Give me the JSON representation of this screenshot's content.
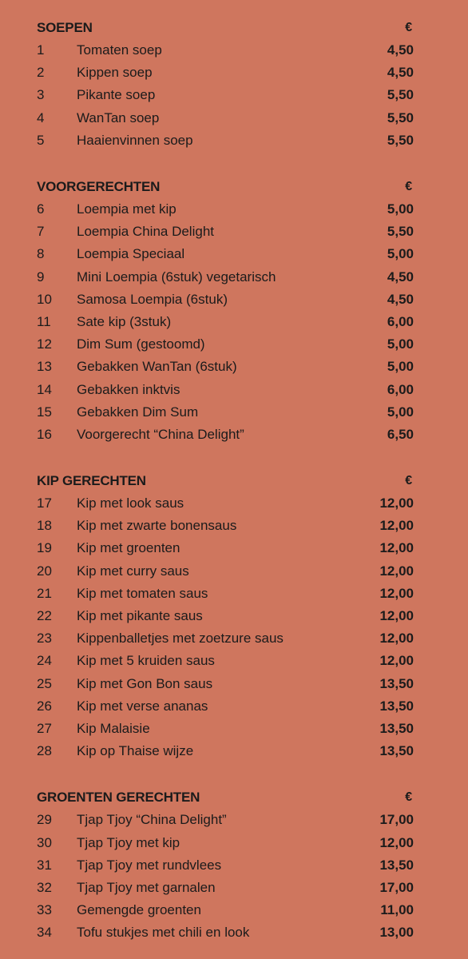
{
  "sections": [
    {
      "title": "SOEPEN",
      "currency": "€",
      "items": [
        {
          "num": "1",
          "name": "Tomaten soep",
          "price": "4,50"
        },
        {
          "num": "2",
          "name": "Kippen soep",
          "price": "4,50"
        },
        {
          "num": "3",
          "name": "Pikante soep",
          "price": "5,50"
        },
        {
          "num": "4",
          "name": "WanTan soep",
          "price": "5,50"
        },
        {
          "num": "5",
          "name": "Haaienvinnen soep",
          "price": "5,50"
        }
      ]
    },
    {
      "title": "VOORGERECHTEN",
      "currency": "€",
      "items": [
        {
          "num": "6",
          "name": "Loempia met kip",
          "price": "5,00"
        },
        {
          "num": "7",
          "name": "Loempia China Delight",
          "price": "5,50"
        },
        {
          "num": "8",
          "name": "Loempia Speciaal",
          "price": "5,00"
        },
        {
          "num": "9",
          "name": "Mini Loempia (6stuk) vegetarisch",
          "price": "4,50"
        },
        {
          "num": "10",
          "name": "Samosa Loempia (6stuk)",
          "price": "4,50"
        },
        {
          "num": "11",
          "name": "Sate kip (3stuk)",
          "price": "6,00"
        },
        {
          "num": "12",
          "name": "Dim Sum (gestoomd)",
          "price": "5,00"
        },
        {
          "num": "13",
          "name": "Gebakken WanTan (6stuk)",
          "price": "5,00"
        },
        {
          "num": "14",
          "name": "Gebakken inktvis",
          "price": "6,00"
        },
        {
          "num": "15",
          "name": "Gebakken Dim Sum",
          "price": "5,00"
        },
        {
          "num": "16",
          "name": "Voorgerecht “China Delight”",
          "price": "6,50"
        }
      ]
    },
    {
      "title": "KIP GERECHTEN",
      "currency": "€",
      "items": [
        {
          "num": "17",
          "name": "Kip met look saus",
          "price": "12,00"
        },
        {
          "num": "18",
          "name": "Kip met zwarte bonensaus",
          "price": "12,00"
        },
        {
          "num": "19",
          "name": "Kip met groenten",
          "price": "12,00"
        },
        {
          "num": "20",
          "name": "Kip met curry saus",
          "price": "12,00"
        },
        {
          "num": "21",
          "name": "Kip met tomaten saus",
          "price": "12,00"
        },
        {
          "num": "22",
          "name": "Kip met pikante saus",
          "price": "12,00"
        },
        {
          "num": "23",
          "name": "Kippenballetjes met zoetzure saus",
          "price": "12,00"
        },
        {
          "num": "24",
          "name": "Kip met 5 kruiden saus",
          "price": "12,00"
        },
        {
          "num": "25",
          "name": "Kip met Gon Bon saus",
          "price": "13,50"
        },
        {
          "num": "26",
          "name": "Kip met verse ananas",
          "price": "13,50"
        },
        {
          "num": "27",
          "name": "Kip Malaisie",
          "price": "13,50"
        },
        {
          "num": "28",
          "name": "Kip op Thaise wijze",
          "price": "13,50"
        }
      ]
    },
    {
      "title": "GROENTEN GERECHTEN",
      "currency": "€",
      "items": [
        {
          "num": "29",
          "name": "Tjap Tjoy “China Delight”",
          "price": "17,00"
        },
        {
          "num": "30",
          "name": "Tjap Tjoy met kip",
          "price": "12,00"
        },
        {
          "num": "31",
          "name": "Tjap Tjoy met rundvlees",
          "price": "13,50"
        },
        {
          "num": "32",
          "name": "Tjap Tjoy met garnalen",
          "price": "17,00"
        },
        {
          "num": "33",
          "name": "Gemengde groenten",
          "price": "11,00"
        },
        {
          "num": "34",
          "name": "Tofu stukjes met chili en look",
          "price": "13,00"
        }
      ]
    }
  ]
}
